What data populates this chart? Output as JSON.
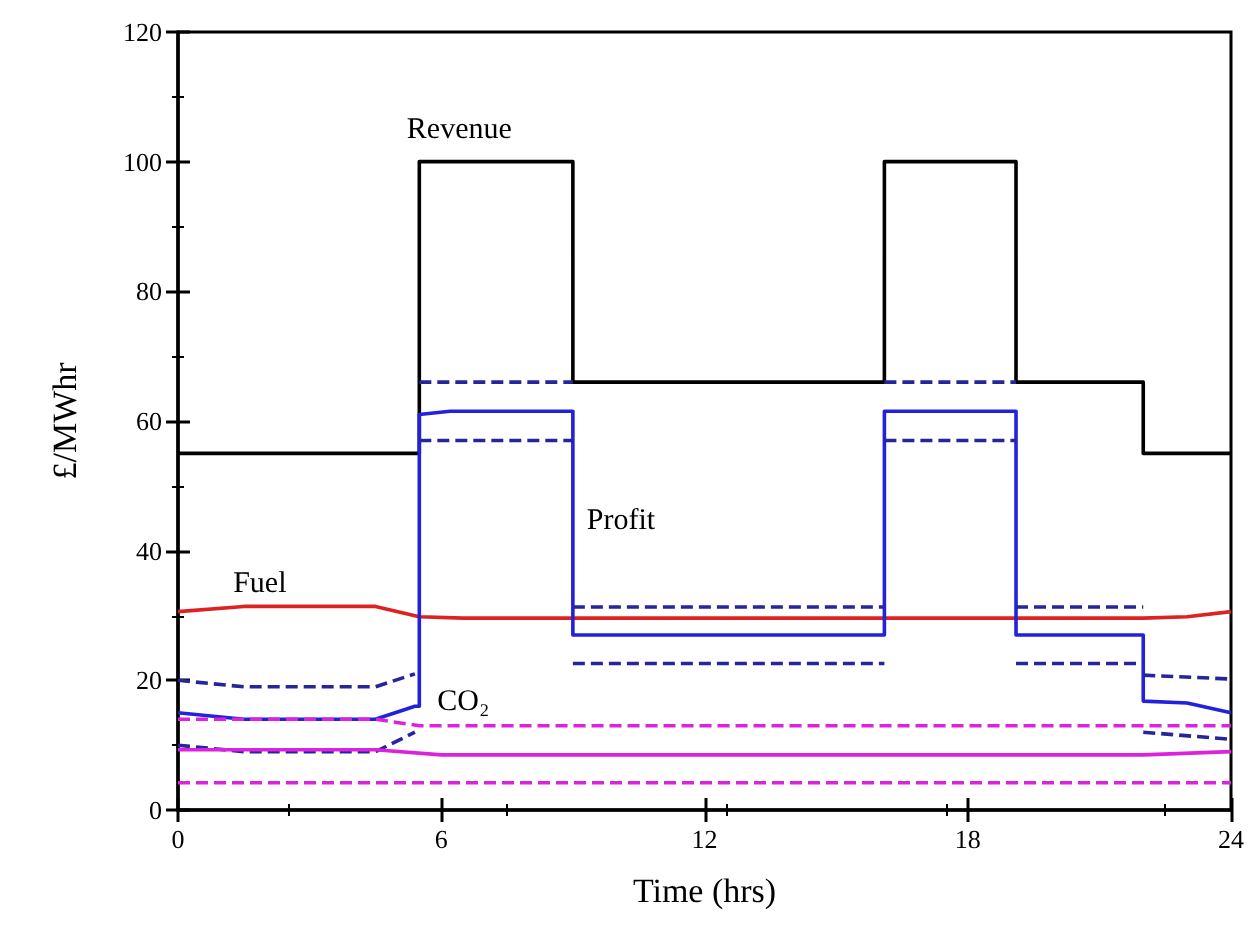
{
  "chart_data": {
    "type": "line",
    "xlabel": "Time (hrs)",
    "ylabel": "£/MWhr",
    "xlim": [
      0,
      24
    ],
    "xticks": [
      0,
      6,
      12,
      18,
      24
    ],
    "ylim": [
      0,
      120
    ],
    "yticks": [
      0,
      20,
      40,
      60,
      80,
      100,
      120
    ],
    "grid": false,
    "legend": false,
    "marker": "none",
    "series": [
      {
        "name": "Revenue",
        "color": "#000000",
        "line_style": "solid",
        "x": [
          0,
          5.5,
          5.5,
          9,
          9,
          16.1,
          16.1,
          19.1,
          19.1,
          22,
          22,
          24
        ],
        "values": [
          55,
          55,
          100,
          100,
          66,
          66,
          100,
          100,
          66,
          66,
          55,
          55
        ]
      },
      {
        "name": "Fuel",
        "color": "#dd2222",
        "line_style": "solid",
        "x": [
          0,
          1.5,
          4.5,
          5.5,
          6.5,
          12,
          18,
          22,
          23,
          24
        ],
        "values": [
          30.6,
          31.4,
          31.4,
          29.8,
          29.6,
          29.6,
          29.6,
          29.6,
          29.8,
          30.6
        ]
      },
      {
        "name": "Profit",
        "color": "#2222dd",
        "line_style": "solid",
        "x": [
          0,
          1.5,
          4.5,
          5.4,
          5.5,
          5.5,
          6.2,
          9,
          9,
          16.1,
          16.1,
          19.1,
          19.1,
          22,
          22,
          23,
          24
        ],
        "values": [
          15,
          14,
          14,
          16,
          16,
          61,
          61.5,
          61.5,
          27,
          27,
          61.5,
          61.5,
          27,
          27,
          16.8,
          16.5,
          15
        ]
      },
      {
        "color": "#26269a",
        "line_style": "dashed",
        "x": [
          0,
          1.5,
          4.5,
          5.4
        ],
        "values": [
          20,
          19,
          19,
          21
        ]
      },
      {
        "color": "#26269a",
        "line_style": "dashed",
        "x": [
          5.5,
          9
        ],
        "values": [
          66,
          66
        ]
      },
      {
        "color": "#26269a",
        "line_style": "dashed",
        "x": [
          9,
          16.1
        ],
        "values": [
          31.3,
          31.3
        ]
      },
      {
        "color": "#26269a",
        "line_style": "dashed",
        "x": [
          16.1,
          19.1
        ],
        "values": [
          66,
          66
        ]
      },
      {
        "color": "#26269a",
        "line_style": "dashed",
        "x": [
          19.1,
          22
        ],
        "values": [
          31.3,
          31.3
        ]
      },
      {
        "color": "#26269a",
        "line_style": "dashed",
        "x": [
          22,
          24
        ],
        "values": [
          20.8,
          20.2
        ]
      },
      {
        "color": "#26269a",
        "line_style": "dashed",
        "x": [
          0,
          1.5,
          4.5,
          5.4
        ],
        "values": [
          10,
          9,
          9,
          12
        ]
      },
      {
        "color": "#26269a",
        "line_style": "dashed",
        "x": [
          5.5,
          9
        ],
        "values": [
          57,
          57
        ]
      },
      {
        "color": "#26269a",
        "line_style": "dashed",
        "x": [
          9,
          16.1
        ],
        "values": [
          22.6,
          22.6
        ]
      },
      {
        "color": "#26269a",
        "line_style": "dashed",
        "x": [
          16.1,
          19.1
        ],
        "values": [
          57,
          57
        ]
      },
      {
        "color": "#26269a",
        "line_style": "dashed",
        "x": [
          19.1,
          22
        ],
        "values": [
          22.6,
          22.6
        ]
      },
      {
        "color": "#26269a",
        "line_style": "dashed",
        "x": [
          22,
          24
        ],
        "values": [
          12,
          10.9
        ]
      },
      {
        "color": "#dd22dd",
        "line_style": "solid",
        "x": [
          0,
          4.5,
          6,
          12,
          18,
          22,
          24
        ],
        "values": [
          9.3,
          9.3,
          8.5,
          8.5,
          8.5,
          8.5,
          9
        ]
      },
      {
        "name": "CO₂",
        "color": "#dd22dd",
        "line_style": "dashed",
        "x": [
          0,
          4.5,
          5.5,
          12,
          18,
          24
        ],
        "values": [
          14,
          14,
          13,
          13,
          13,
          13
        ]
      },
      {
        "color": "#dd22dd",
        "line_style": "dashed",
        "x": [
          0,
          12,
          24
        ],
        "values": [
          4.2,
          4.2,
          4.2
        ]
      }
    ]
  }
}
